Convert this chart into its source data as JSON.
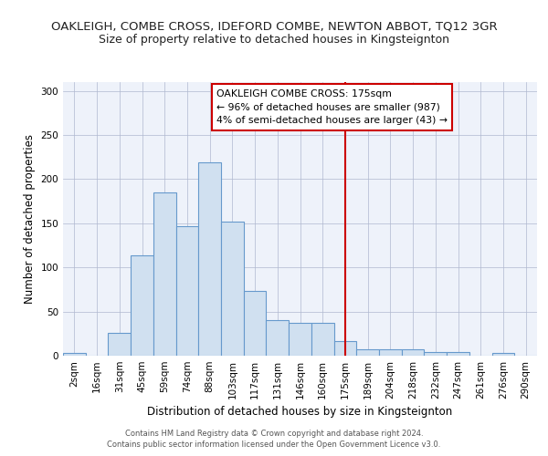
{
  "title1": "OAKLEIGH, COMBE CROSS, IDEFORD COMBE, NEWTON ABBOT, TQ12 3GR",
  "title2": "Size of property relative to detached houses in Kingsteignton",
  "xlabel": "Distribution of detached houses by size in Kingsteignton",
  "ylabel": "Number of detached properties",
  "bar_labels": [
    "2sqm",
    "16sqm",
    "31sqm",
    "45sqm",
    "59sqm",
    "74sqm",
    "88sqm",
    "103sqm",
    "117sqm",
    "131sqm",
    "146sqm",
    "160sqm",
    "175sqm",
    "189sqm",
    "204sqm",
    "218sqm",
    "232sqm",
    "247sqm",
    "261sqm",
    "276sqm",
    "290sqm"
  ],
  "bar_heights": [
    3,
    0,
    26,
    114,
    185,
    147,
    219,
    152,
    73,
    40,
    37,
    37,
    17,
    7,
    7,
    7,
    4,
    4,
    0,
    3,
    0
  ],
  "bar_color": "#d0e0f0",
  "bar_edge_color": "#6699cc",
  "vline_x": 12,
  "vline_color": "#cc0000",
  "annotation_title": "OAKLEIGH COMBE CROSS: 175sqm",
  "annotation_line1": "← 96% of detached houses are smaller (987)",
  "annotation_line2": "4% of semi-detached houses are larger (43) →",
  "annotation_box_color": "#ffffff",
  "annotation_box_edge": "#cc0000",
  "footer": "Contains HM Land Registry data © Crown copyright and database right 2024.\nContains public sector information licensed under the Open Government Licence v3.0.",
  "ylim": [
    0,
    310
  ],
  "figure_background": "#ffffff",
  "plot_background": "#eef2fa",
  "title_fontsize": 9.5,
  "subtitle_fontsize": 9,
  "tick_fontsize": 7.5,
  "ylabel_fontsize": 8.5,
  "xlabel_fontsize": 8.5,
  "footer_fontsize": 6.0
}
